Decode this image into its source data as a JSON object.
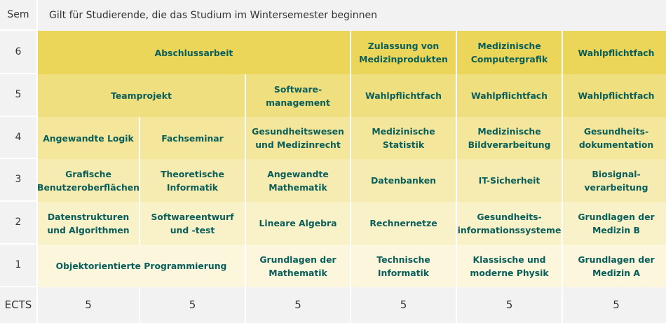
{
  "header": {
    "sem_label": "Sem",
    "title": "Gilt für Studierende, die das Studium im Wintersemester beginnen"
  },
  "rows": {
    "r6": {
      "sem": "6",
      "c1": "Abschlussarbeit",
      "c4": "Zulassung von Medizinprodukten",
      "c5": "Medizinische Computergrafik",
      "c6": "Wahlpflichtfach"
    },
    "r5": {
      "sem": "5",
      "c1": "Teamprojekt",
      "c3": "Software-management",
      "c4": "Wahlpflichtfach",
      "c5": "Wahlpflichtfach",
      "c6": "Wahlpflichtfach"
    },
    "r4": {
      "sem": "4",
      "c1": "Angewandte Logik",
      "c2": "Fachseminar",
      "c3": "Gesundheitswesen und Medizinrecht",
      "c4": "Medizinische Statistik",
      "c5": "Medizinische Bildverarbeitung",
      "c6": "Gesundheits-dokumentation"
    },
    "r3": {
      "sem": "3",
      "c1": "Grafische Benutzeroberflächen",
      "c2": "Theoretische Informatik",
      "c3": "Angewandte Mathematik",
      "c4": "Datenbanken",
      "c5": "IT-Sicherheit",
      "c6": "Biosignal-verarbeitung"
    },
    "r2": {
      "sem": "2",
      "c1": "Datenstrukturen und Algorithmen",
      "c2": "Softwareentwurf und -test",
      "c3": "Lineare Algebra",
      "c4": "Rechnernetze",
      "c5": "Gesundheits-informationssysteme",
      "c6": "Grundlagen der Medizin B"
    },
    "r1": {
      "sem": "1",
      "c1": "Objektorientierte Programmierung",
      "c3": "Grundlagen der Mathematik",
      "c4": "Technische Informatik",
      "c5": "Klassische und moderne Physik",
      "c6": "Grundlagen der Medizin A"
    }
  },
  "ects": {
    "label": "ECTS",
    "values": [
      "5",
      "5",
      "5",
      "5",
      "5",
      "5"
    ]
  }
}
